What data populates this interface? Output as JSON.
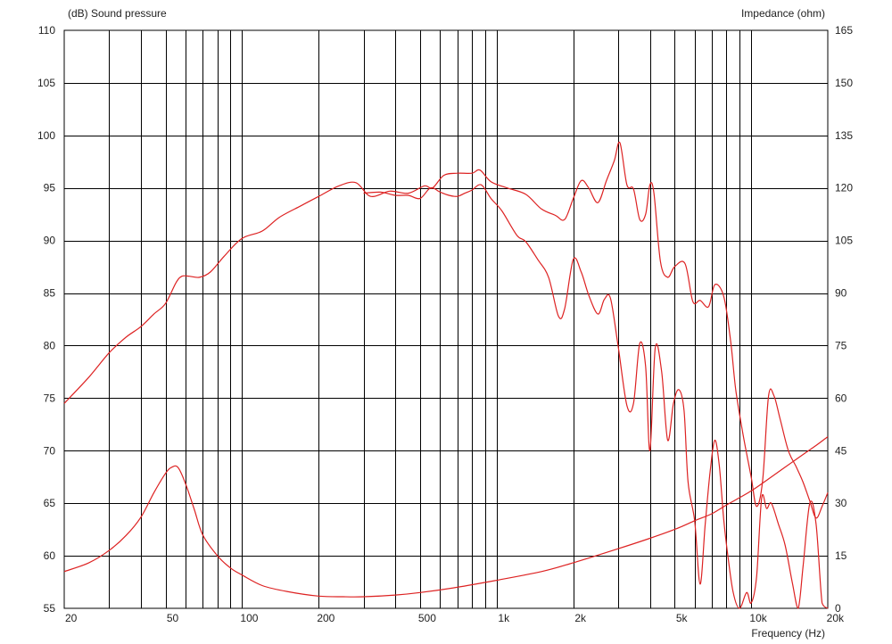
{
  "chart_data": {
    "type": "line",
    "x_scale": "log",
    "xlim": [
      20,
      20000
    ],
    "ylim_left": [
      55,
      110
    ],
    "ylim_right": [
      0,
      165
    ],
    "grid": true,
    "left_axis_title": "(dB)  Sound pressure",
    "right_axis_title": "Impedance  (ohm)",
    "xlabel": "Frequency  (Hz)",
    "x_ticks": [
      {
        "label": "20",
        "value": 20
      },
      {
        "label": "50",
        "value": 50
      },
      {
        "label": "100",
        "value": 100
      },
      {
        "label": "200",
        "value": 200
      },
      {
        "label": "500",
        "value": 500
      },
      {
        "label": "1k",
        "value": 1000
      },
      {
        "label": "2k",
        "value": 2000
      },
      {
        "label": "5k",
        "value": 5000
      },
      {
        "label": "10k",
        "value": 10000
      },
      {
        "label": "20k",
        "value": 20000
      }
    ],
    "x_grid": [
      30,
      40,
      50,
      60,
      70,
      80,
      90,
      100,
      200,
      300,
      400,
      500,
      600,
      700,
      800,
      900,
      1000,
      2000,
      3000,
      4000,
      5000,
      6000,
      7000,
      8000,
      9000,
      10000
    ],
    "y_left_ticks": [
      "55",
      "60",
      "65",
      "70",
      "75",
      "80",
      "85",
      "90",
      "95",
      "100",
      "105",
      "110"
    ],
    "y_right_ticks": [
      "0",
      "15",
      "30",
      "45",
      "60",
      "75",
      "90",
      "105",
      "120",
      "135",
      "150",
      "165"
    ],
    "colors": {
      "curve": "#dd2222",
      "grid": "#000000"
    },
    "series": [
      {
        "axis": "left",
        "x": [
          20,
          25,
          30,
          35,
          40,
          45,
          50,
          55,
          58,
          62,
          68,
          75,
          85,
          100,
          120,
          140,
          170,
          200,
          240,
          280,
          320,
          380,
          450,
          520,
          560,
          620,
          700,
          800,
          860,
          950,
          1100,
          1300,
          1500,
          1700,
          1850,
          2000,
          2150,
          2300,
          2500,
          2700,
          2900,
          3050,
          3250,
          3450,
          3650,
          3850,
          4000,
          4150,
          4400,
          4700,
          5000,
          5500,
          5900,
          6300,
          6800,
          7200,
          7800,
          8300,
          8700,
          9300,
          10000,
          10500,
          11100,
          11700,
          12300,
          13000,
          14000,
          15000,
          16000,
          17000,
          18000,
          19000,
          20000
        ],
        "y": [
          74.5,
          77.0,
          79.3,
          80.8,
          81.8,
          83.0,
          84.0,
          86.0,
          86.6,
          86.6,
          86.5,
          87.0,
          88.5,
          90.2,
          90.9,
          92.2,
          93.3,
          94.2,
          95.2,
          95.5,
          94.2,
          94.7,
          94.5,
          95.2,
          95.0,
          96.2,
          96.4,
          96.4,
          96.7,
          95.6,
          95.0,
          94.4,
          93.0,
          92.4,
          92.0,
          94.0,
          95.7,
          95.0,
          93.6,
          95.7,
          97.6,
          99.3,
          95.3,
          94.9,
          92.0,
          92.5,
          95.3,
          94.5,
          88.0,
          86.5,
          87.5,
          87.8,
          84.2,
          84.3,
          83.7,
          85.8,
          84.7,
          80.5,
          75.8,
          71.5,
          67.5,
          64.7,
          67.2,
          75.2,
          75.2,
          73.0,
          70.0,
          68.5,
          67.0,
          65.2,
          63.6,
          64.7,
          66.0
        ]
      },
      {
        "axis": "left",
        "x": [
          300,
          350,
          400,
          450,
          500,
          550,
          600,
          650,
          700,
          750,
          800,
          870,
          950,
          1050,
          1200,
          1300,
          1450,
          1600,
          1750,
          1850,
          2000,
          2150,
          2300,
          2500,
          2650,
          2800,
          3000,
          3250,
          3450,
          3650,
          3850,
          4000,
          4200,
          4450,
          4700,
          4950,
          5200,
          5450,
          5650,
          6000,
          6300,
          6600,
          6900,
          7200,
          7500,
          7800,
          8100,
          8500,
          9000,
          9600,
          10000,
          10500,
          11000,
          11500,
          12000,
          12800,
          13600,
          14500,
          15300,
          16000,
          17000,
          18000,
          19000,
          20000
        ],
        "y": [
          94.5,
          94.6,
          94.3,
          94.3,
          94.0,
          95.0,
          94.6,
          94.3,
          94.2,
          94.5,
          94.8,
          95.3,
          94.0,
          92.8,
          90.5,
          89.9,
          88.2,
          86.5,
          82.8,
          83.5,
          88.2,
          87.0,
          84.8,
          83.0,
          84.4,
          84.5,
          80.0,
          74.3,
          74.5,
          80.2,
          78.0,
          70.0,
          79.8,
          77.5,
          71.0,
          74.5,
          75.8,
          73.8,
          67.0,
          63.3,
          57.3,
          63.0,
          68.0,
          71.0,
          68.5,
          63.5,
          60.0,
          56.5,
          55.0,
          56.5,
          55.5,
          58.0,
          65.5,
          64.5,
          65.0,
          63.0,
          61.0,
          57.5,
          55.0,
          59.0,
          65.0,
          63.0,
          55.5,
          54.5
        ]
      },
      {
        "axis": "right",
        "x": [
          20,
          25,
          30,
          35,
          40,
          45,
          50,
          53,
          56,
          60,
          65,
          70,
          80,
          90,
          100,
          120,
          150,
          200,
          250,
          300,
          400,
          500,
          700,
          1000,
          1500,
          2000,
          3000,
          4000,
          5000,
          6000,
          7000,
          8000,
          10000,
          12000,
          15000,
          18000,
          20000
        ],
        "y": [
          10.5,
          13.0,
          16.5,
          20.8,
          26.0,
          33.0,
          38.5,
          40.3,
          40.2,
          35.5,
          28.0,
          21.0,
          15.0,
          11.5,
          9.5,
          6.5,
          4.8,
          3.5,
          3.3,
          3.3,
          3.8,
          4.5,
          6.0,
          8.0,
          10.5,
          13.0,
          17.0,
          20.0,
          22.5,
          25.0,
          27.0,
          29.5,
          33.5,
          37.5,
          42.5,
          46.5,
          49.0
        ]
      }
    ]
  }
}
